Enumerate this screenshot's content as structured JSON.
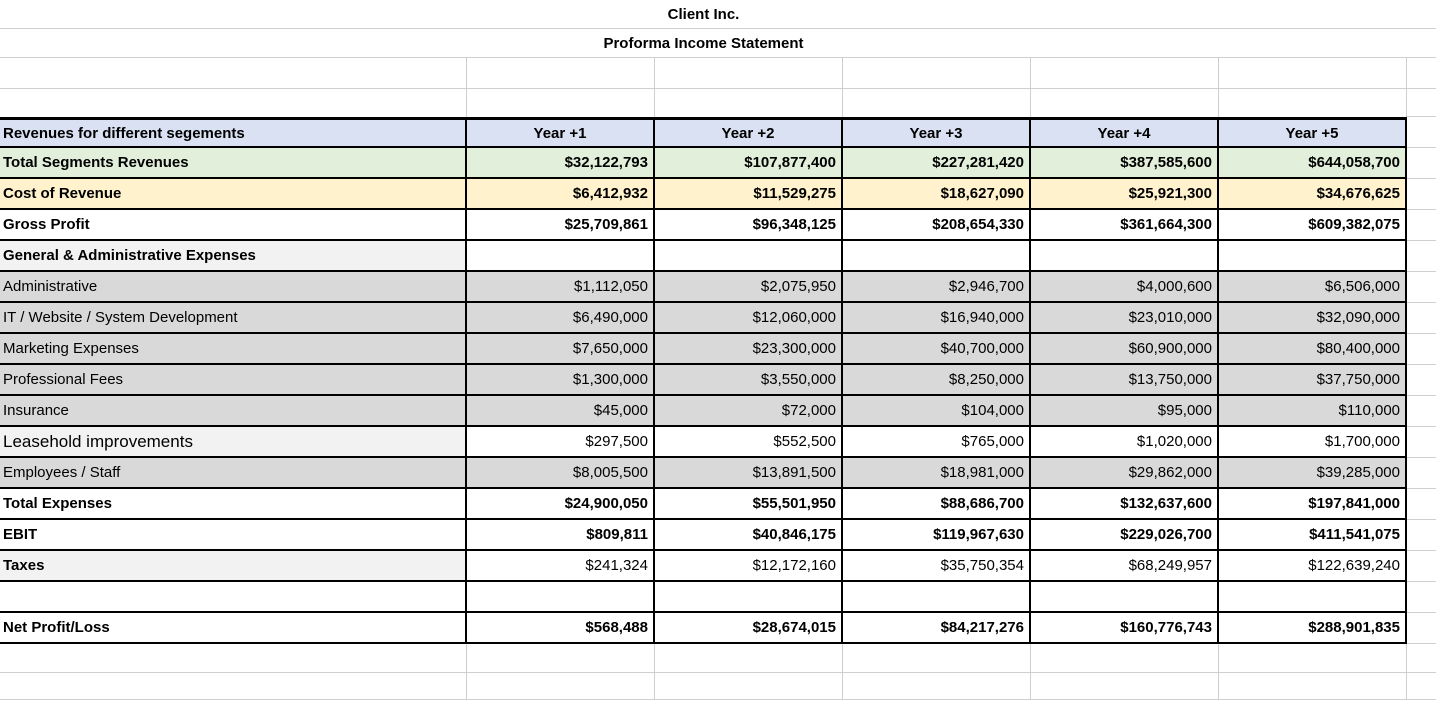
{
  "title": "Client Inc.",
  "subtitle": "Proforma Income Statement",
  "table": {
    "corner_label": "Revenues for different segements",
    "year_headers": [
      "Year +1",
      "Year +2",
      "Year +3",
      "Year +4",
      "Year +5"
    ],
    "rows": [
      {
        "label": "Total Segments Revenues",
        "fill": "green",
        "emphasis": "bold",
        "values": [
          "$32,122,793",
          "$107,877,400",
          "$227,281,420",
          "$387,585,600",
          "$644,058,700"
        ]
      },
      {
        "label": "Cost of Revenue",
        "fill": "cream",
        "emphasis": "bold",
        "values": [
          "$6,412,932",
          "$11,529,275",
          "$18,627,090",
          "$25,921,300",
          "$34,676,625"
        ]
      },
      {
        "label": "Gross Profit",
        "fill": "white",
        "emphasis": "bold",
        "values": [
          "$25,709,861",
          "$96,348,125",
          "$208,654,330",
          "$361,664,300",
          "$609,382,075"
        ]
      },
      {
        "label": "General & Administrative Expenses",
        "fill": "section",
        "emphasis": "bold",
        "values": [
          "",
          "",
          "",
          "",
          ""
        ]
      },
      {
        "label": "Administrative",
        "fill": "gray",
        "emphasis": "regular",
        "values": [
          "$1,112,050",
          "$2,075,950",
          "$2,946,700",
          "$4,000,600",
          "$6,506,000"
        ]
      },
      {
        "label": "IT / Website / System Development",
        "fill": "gray",
        "emphasis": "regular",
        "values": [
          "$6,490,000",
          "$12,060,000",
          "$16,940,000",
          "$23,010,000",
          "$32,090,000"
        ]
      },
      {
        "label": "Marketing Expenses",
        "fill": "gray",
        "emphasis": "regular",
        "values": [
          "$7,650,000",
          "$23,300,000",
          "$40,700,000",
          "$60,900,000",
          "$80,400,000"
        ]
      },
      {
        "label": "Professional Fees",
        "fill": "gray",
        "emphasis": "regular",
        "values": [
          "$1,300,000",
          "$3,550,000",
          "$8,250,000",
          "$13,750,000",
          "$37,750,000"
        ]
      },
      {
        "label": "Insurance",
        "fill": "gray",
        "emphasis": "regular",
        "values": [
          "$45,000",
          "$72,000",
          "$104,000",
          "$95,000",
          "$110,000"
        ]
      },
      {
        "label": "Leasehold improvements",
        "fill": "section",
        "emphasis": "regular",
        "label_large": true,
        "values": [
          "$297,500",
          "$552,500",
          "$765,000",
          "$1,020,000",
          "$1,700,000"
        ]
      },
      {
        "label": "Employees / Staff",
        "fill": "gray",
        "emphasis": "regular",
        "values": [
          "$8,005,500",
          "$13,891,500",
          "$18,981,000",
          "$29,862,000",
          "$39,285,000"
        ]
      },
      {
        "label": "Total Expenses",
        "fill": "white",
        "emphasis": "bold",
        "values": [
          "$24,900,050",
          "$55,501,950",
          "$88,686,700",
          "$132,637,600",
          "$197,841,000"
        ]
      },
      {
        "label": "EBIT",
        "fill": "white",
        "emphasis": "bold",
        "values": [
          "$809,811",
          "$40,846,175",
          "$119,967,630",
          "$229,026,700",
          "$411,541,075"
        ]
      },
      {
        "label": "Taxes",
        "fill": "section",
        "emphasis": "bold-label",
        "values": [
          "$241,324",
          "$12,172,160",
          "$35,750,354",
          "$68,249,957",
          "$122,639,240"
        ]
      },
      {
        "label": "",
        "fill": "white",
        "emphasis": "regular",
        "values": [
          "",
          "",
          "",
          "",
          ""
        ]
      },
      {
        "label": "Net Profit/Loss",
        "fill": "white",
        "emphasis": "bold",
        "values": [
          "$568,488",
          "$28,674,015",
          "$84,217,276",
          "$160,776,743",
          "$288,901,835"
        ]
      }
    ]
  },
  "colors": {
    "header_fill": "#D9E1F2",
    "revenue_fill": "#E2EFDA",
    "cost_fill": "#FFF2CC",
    "expense_fill": "#D9D9D9",
    "section_fill": "#F2F2F2",
    "grid_border": "#000000",
    "light_gridline": "#CFCFCF"
  }
}
